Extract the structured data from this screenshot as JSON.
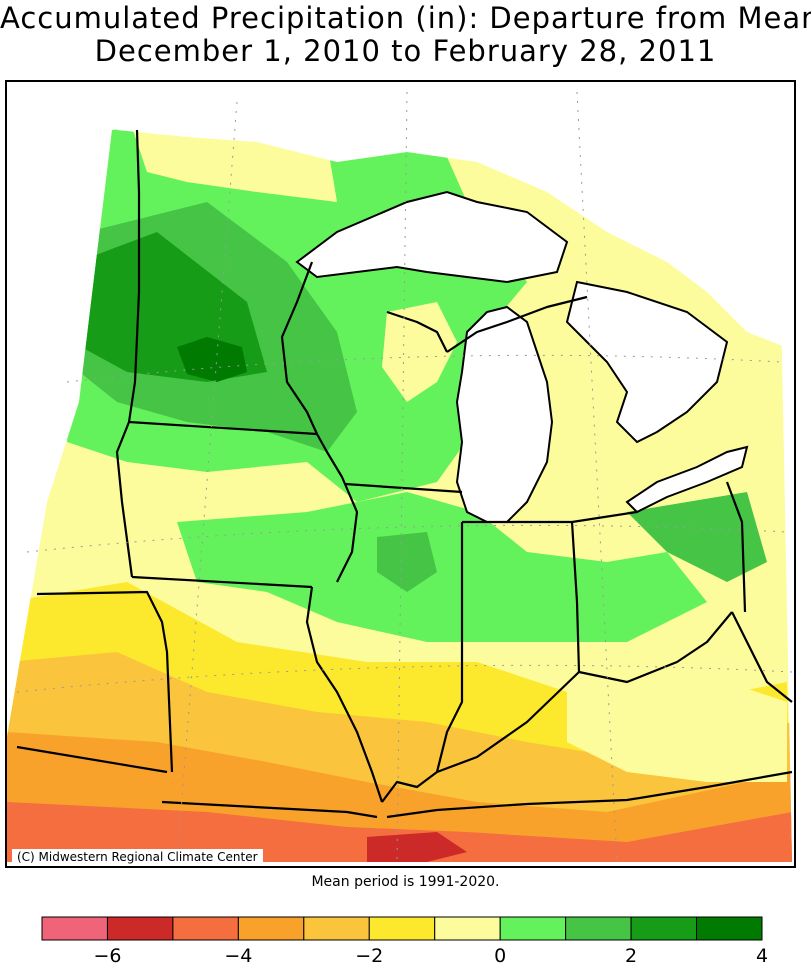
{
  "title": {
    "line1": "Accumulated Precipitation (in): Departure from Mean",
    "line2": "December 1, 2010 to February 28, 2011"
  },
  "credit": "(C) Midwestern Regional Climate Center",
  "mean_note": "Mean period is 1991-2020.",
  "colors": {
    "water": "#ffffff",
    "border": "#000000",
    "grid": "#9a9a9a"
  },
  "legend": {
    "bins": [
      {
        "range": [
          -7,
          -6
        ],
        "color": "#f0647a"
      },
      {
        "range": [
          -6,
          -5
        ],
        "color": "#cc2a28"
      },
      {
        "range": [
          -5,
          -4
        ],
        "color": "#f46e40"
      },
      {
        "range": [
          -4,
          -3
        ],
        "color": "#f8a22c"
      },
      {
        "range": [
          -3,
          -2
        ],
        "color": "#fac43c"
      },
      {
        "range": [
          -2,
          -1
        ],
        "color": "#fce82c"
      },
      {
        "range": [
          -1,
          0
        ],
        "color": "#fcfc9c"
      },
      {
        "range": [
          0,
          1
        ],
        "color": "#64f25c"
      },
      {
        "range": [
          1,
          2
        ],
        "color": "#46c446"
      },
      {
        "range": [
          2,
          3
        ],
        "color": "#169c16"
      },
      {
        "range": [
          3,
          4
        ],
        "color": "#007a00"
      }
    ],
    "tick_labels": [
      "−6",
      "−4",
      "−2",
      "0",
      "2",
      "4"
    ],
    "tick_values": [
      -6,
      -4,
      -2,
      0,
      2,
      4
    ]
  },
  "map": {
    "region": "Midwest United States",
    "field_shown": "precipitation departure from mean (in)",
    "dominant_patterns": [
      {
        "area": "northern Minnesota",
        "category": [
          3,
          4
        ]
      },
      {
        "area": "Minnesota / Wisconsin",
        "category": [
          1,
          3
        ]
      },
      {
        "area": "Iowa / Illinois / Indiana north",
        "category": [
          -1,
          1
        ]
      },
      {
        "area": "Missouri / southern Illinois / Kentucky",
        "category": [
          -4,
          -1
        ]
      },
      {
        "area": "Kentucky-Tennessee border",
        "category": [
          -6,
          -4
        ]
      }
    ]
  }
}
